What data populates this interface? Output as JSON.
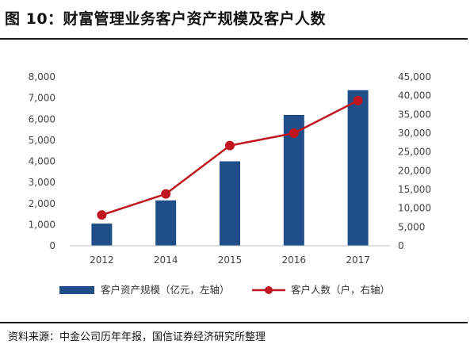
{
  "figure": {
    "title": "图 10：财富管理业务客户资产规模及客户人数",
    "source": "资料来源：中金公司历年年报，国信证券经济研究所整理"
  },
  "colors": {
    "bar": "#1f4e89",
    "line": "#c0161f",
    "axis": "#bfbfbf",
    "text": "#444444"
  },
  "chart_data": {
    "type": "bar+line",
    "categories": [
      "2012",
      "2014",
      "2015",
      "2016",
      "2017"
    ],
    "series": [
      {
        "name": "客户资产规模（亿元，左轴）",
        "type": "bar",
        "axis": "left",
        "values": [
          1050,
          2150,
          4000,
          6200,
          7370
        ]
      },
      {
        "name": "客户人数（户，右轴）",
        "type": "line",
        "axis": "right",
        "values": [
          8200,
          13800,
          26700,
          30000,
          38700
        ]
      }
    ],
    "y_left": {
      "min": 0,
      "max": 8000,
      "step": 1000,
      "ticks": [
        "0",
        "1,000",
        "2,000",
        "3,000",
        "4,000",
        "5,000",
        "6,000",
        "7,000",
        "8,000"
      ]
    },
    "y_right": {
      "min": 0,
      "max": 45000,
      "step": 5000,
      "ticks": [
        "0",
        "5,000",
        "10,000",
        "15,000",
        "20,000",
        "25,000",
        "30,000",
        "35,000",
        "40,000",
        "45,000"
      ]
    },
    "grid": false,
    "legend": "bottom"
  }
}
